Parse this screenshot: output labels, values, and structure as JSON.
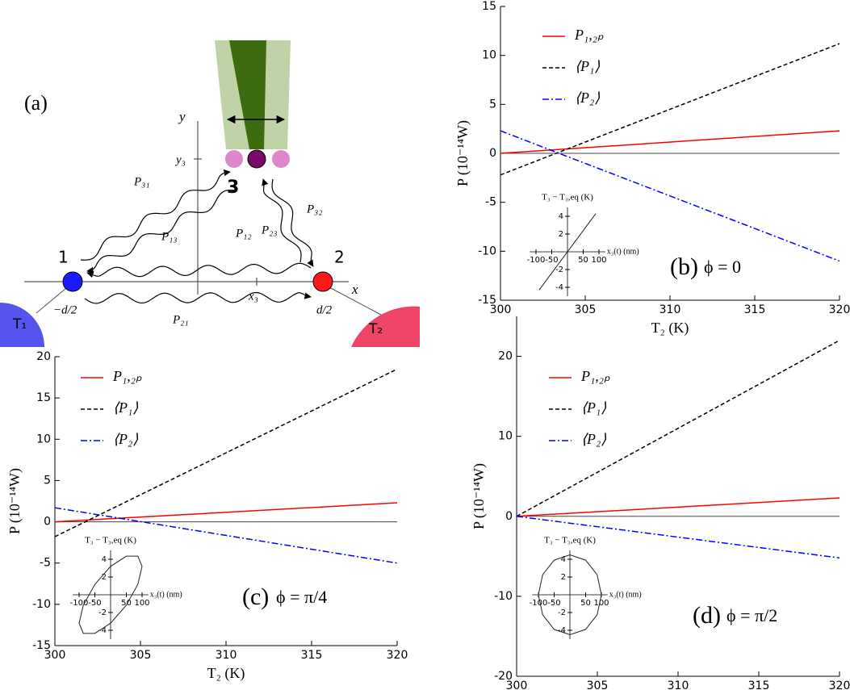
{
  "diagram": {
    "panel_label": "(a)",
    "axis_y": "y",
    "axis_x": "x",
    "y3": "y₃",
    "x3": "x₃",
    "node3": "3",
    "node1": "1",
    "node2": "2",
    "minus_d2": "−d/2",
    "d2": "d/2",
    "T1": "T₁",
    "T2": "T₂",
    "P31": "P₃₁",
    "P13": "P₁₃",
    "P12": "P₁₂",
    "P21": "P₂₁",
    "P32": "P₃₂",
    "P23": "P₂₃"
  },
  "chart_data": [
    {
      "type": "line",
      "panel_label": "(b)",
      "annotation": "ϕ = 0",
      "xlabel": "T₂ (K)",
      "ylabel": "P (10⁻¹⁴W)",
      "xlim": [
        300,
        320
      ],
      "xticks": [
        300,
        305,
        310,
        315,
        320
      ],
      "ylim": [
        -15,
        15
      ],
      "yticks": [
        -15,
        -10,
        -5,
        0,
        5,
        10,
        15
      ],
      "hline": 0,
      "legend": "upper left",
      "x": [
        300,
        320
      ],
      "series": [
        {
          "name": "P₁,₂ₚ",
          "color": "#ff0000",
          "dash": "solid",
          "values": [
            0,
            2.3
          ]
        },
        {
          "name": "⟨P₁⟩",
          "color": "#000000",
          "dash": "dashed",
          "values": [
            -2.2,
            11.2
          ]
        },
        {
          "name": "⟨P₂⟩",
          "color": "#0000ff",
          "dash": "dashdot",
          "values": [
            2.3,
            -11
          ]
        }
      ],
      "inset": {
        "xlabel": "x₃(t) (nm)",
        "ylabel": "T₃ − T₃,eq (K)",
        "xlim": [
          -120,
          120
        ],
        "ylim": [
          -5,
          5
        ],
        "xticks": [
          -100,
          -50,
          50,
          100
        ],
        "yticks": [
          -4,
          -2,
          2,
          4
        ],
        "x": [
          -90,
          90
        ],
        "y": [
          -4.3,
          4.3
        ]
      }
    },
    {
      "type": "line",
      "panel_label": "(c)",
      "annotation": "ϕ = π/4",
      "xlabel": "T₂ (K)",
      "ylabel": "P (10⁻¹⁴W)",
      "xlim": [
        300,
        320
      ],
      "xticks": [
        300,
        305,
        310,
        315,
        320
      ],
      "ylim": [
        -15,
        20
      ],
      "yticks": [
        -15,
        -10,
        -5,
        0,
        5,
        10,
        15,
        20
      ],
      "hline": 0,
      "legend": "upper left",
      "x": [
        300,
        320
      ],
      "series": [
        {
          "name": "P₁,₂ₚ",
          "color": "#ff0000",
          "dash": "solid",
          "values": [
            0,
            2.3
          ]
        },
        {
          "name": "⟨P₁⟩",
          "color": "#000000",
          "dash": "dashed",
          "values": [
            -1.8,
            18.5
          ]
        },
        {
          "name": "⟨P₂⟩",
          "color": "#0000ff",
          "dash": "dashdot",
          "values": [
            1.7,
            -5
          ]
        }
      ],
      "inset": {
        "xlabel": "x₃(t) (nm)",
        "ylabel": "T₃ − T₃,eq (K)",
        "xlim": [
          -120,
          120
        ],
        "ylim": [
          -5,
          5
        ],
        "xticks": [
          -100,
          -50,
          50,
          100
        ],
        "yticks": [
          -4,
          -2,
          2,
          4
        ],
        "x": [
          100,
          86.6,
          50,
          0,
          -50,
          -86.6,
          -100,
          -86.6,
          -50,
          0,
          50,
          86.6,
          100
        ],
        "y": [
          3.2,
          4.35,
          4.35,
          3.2,
          1.17,
          -1.17,
          -3.2,
          -4.35,
          -4.35,
          -3.2,
          -1.17,
          1.17,
          3.2
        ]
      }
    },
    {
      "type": "line",
      "panel_label": "(d)",
      "annotation": "ϕ = π/2",
      "xlabel": "T₂ (K)",
      "ylabel": "P (10⁻¹⁴W)",
      "xlim": [
        300,
        320
      ],
      "xticks": [
        300,
        305,
        310,
        315,
        320
      ],
      "ylim": [
        -20,
        25
      ],
      "yticks": [
        -20,
        -10,
        0,
        10,
        20
      ],
      "hline": 0,
      "legend": "upper left",
      "x": [
        300,
        320
      ],
      "series": [
        {
          "name": "P₁,₂ₚ",
          "color": "#ff0000",
          "dash": "solid",
          "values": [
            0,
            2.3
          ]
        },
        {
          "name": "⟨P₁⟩",
          "color": "#000000",
          "dash": "dashed",
          "values": [
            0,
            22
          ]
        },
        {
          "name": "⟨P₂⟩",
          "color": "#0000ff",
          "dash": "dashdot",
          "values": [
            0,
            -5.2
          ]
        }
      ],
      "inset": {
        "xlabel": "x₃(t) (nm)",
        "ylabel": "T₃ − T₃,eq (K)",
        "xlim": [
          -120,
          120
        ],
        "ylim": [
          -5,
          5
        ],
        "xticks": [
          -100,
          -50,
          50,
          100
        ],
        "yticks": [
          -4,
          -2,
          2,
          4
        ],
        "x": [
          100,
          86.6,
          50,
          0,
          -50,
          -86.6,
          -100,
          -86.6,
          -50,
          0,
          50,
          86.6,
          100
        ],
        "y": [
          0,
          2.25,
          3.9,
          4.5,
          3.9,
          2.25,
          0,
          -2.25,
          -3.9,
          -4.5,
          -3.9,
          -2.25,
          0
        ]
      }
    }
  ]
}
